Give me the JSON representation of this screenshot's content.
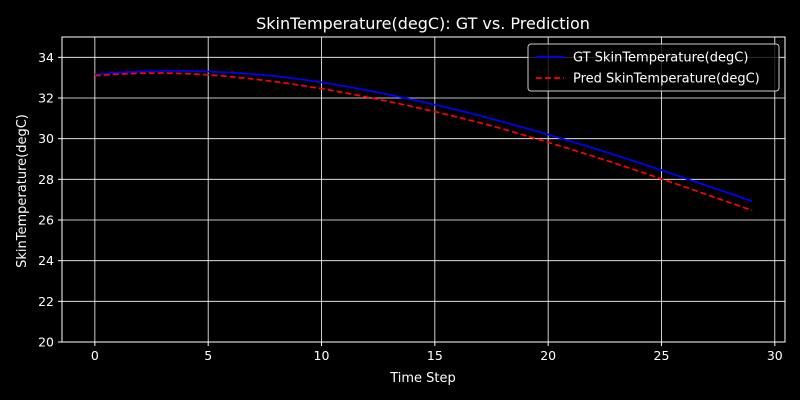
{
  "chart_data": {
    "type": "line",
    "title": "SkinTemperature(degC): GT vs. Prediction",
    "xlabel": "Time Step",
    "ylabel": "SkinTemperature(degC)",
    "xlim": [
      -1.45,
      30.45
    ],
    "ylim": [
      20,
      35
    ],
    "xticks": [
      0,
      5,
      10,
      15,
      20,
      25,
      30
    ],
    "yticks": [
      20,
      22,
      24,
      26,
      28,
      30,
      32,
      34
    ],
    "grid": true,
    "legend_position": "top-right",
    "colors": {
      "background": "#000000",
      "foreground": "#ffffff",
      "gt": "#0000ff",
      "pred": "#ff0000"
    },
    "x": [
      0,
      1,
      2,
      3,
      4,
      5,
      6,
      7,
      8,
      9,
      10,
      11,
      12,
      13,
      14,
      15,
      16,
      17,
      18,
      19,
      20,
      21,
      22,
      23,
      24,
      25,
      26,
      27,
      28,
      29
    ],
    "series": [
      {
        "name": "GT SkinTemperature(degC)",
        "style": "solid",
        "color": "#0000ff",
        "values": [
          33.15,
          33.25,
          33.3,
          33.33,
          33.33,
          33.3,
          33.25,
          33.17,
          33.07,
          32.93,
          32.77,
          32.58,
          32.38,
          32.16,
          31.92,
          31.67,
          31.41,
          31.13,
          30.83,
          30.52,
          30.2,
          29.87,
          29.53,
          29.18,
          28.82,
          28.45,
          28.07,
          27.69,
          27.31,
          26.92
        ]
      },
      {
        "name": "Pred SkinTemperature(degC)",
        "style": "dashed",
        "color": "#ff0000",
        "values": [
          33.1,
          33.17,
          33.22,
          33.23,
          33.2,
          33.14,
          33.05,
          32.93,
          32.8,
          32.64,
          32.46,
          32.26,
          32.05,
          31.82,
          31.58,
          31.33,
          31.06,
          30.78,
          30.48,
          30.15,
          29.82,
          29.48,
          29.13,
          28.77,
          28.4,
          28.02,
          27.64,
          27.25,
          26.86,
          26.47
        ]
      }
    ]
  }
}
